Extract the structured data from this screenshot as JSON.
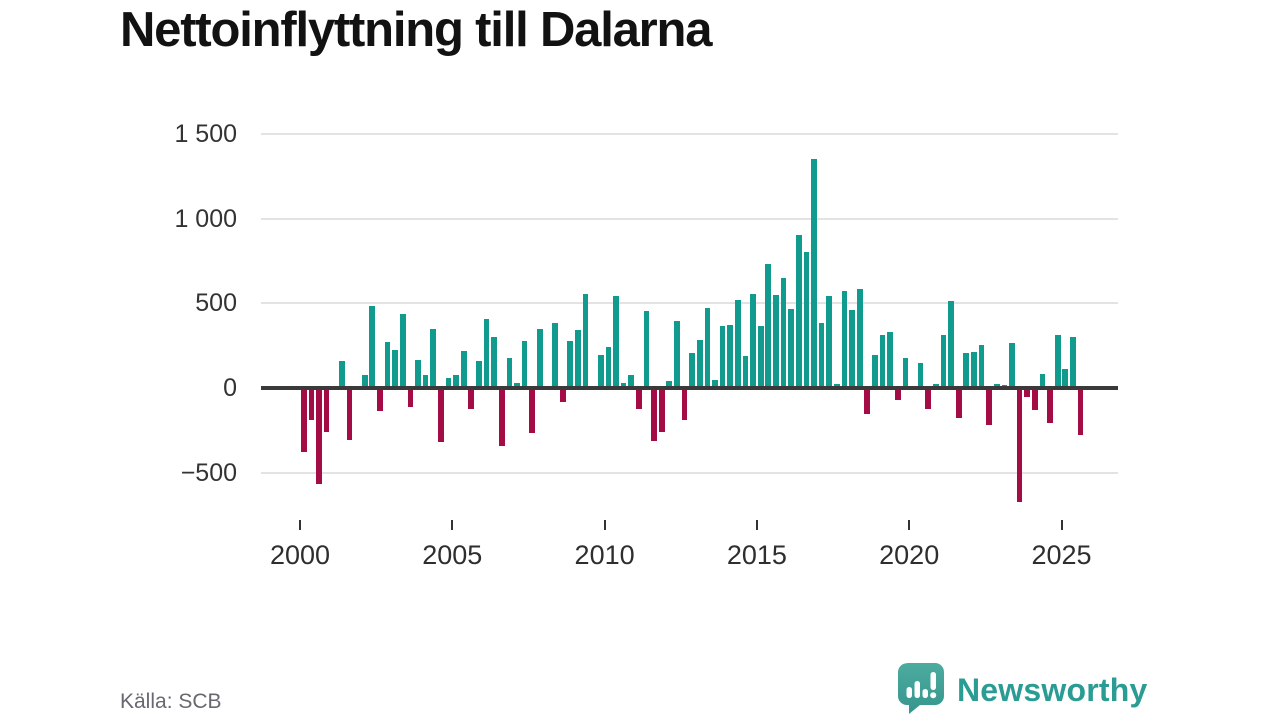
{
  "header": {
    "title": "Nettoinflyttning till Dalarna"
  },
  "footer": {
    "source": "Källa: SCB",
    "brand": "Newsworthy"
  },
  "colors": {
    "positive": "#119b8e",
    "negative": "#a30c45",
    "gridline": "#e3e3e3",
    "zero_line": "#3a3a3a",
    "axis_text": "#333333",
    "brand_teal": "#2a9c94"
  },
  "chart_data": {
    "type": "bar",
    "title": "Nettoinflyttning till Dalarna",
    "xlabel": "",
    "ylabel": "",
    "grid": true,
    "legend": false,
    "ylim": [
      -700,
      1550
    ],
    "y_ticks": [
      -500,
      0,
      500,
      1000,
      1500
    ],
    "y_tick_labels": [
      "−500",
      "0",
      "500",
      "1 000",
      "1 500"
    ],
    "x_ticks": [
      2000,
      2005,
      2010,
      2015,
      2020,
      2025
    ],
    "x_tick_labels": [
      "2000",
      "2005",
      "2010",
      "2015",
      "2020",
      "2025"
    ],
    "quarters": [
      "2000 Q1",
      "2000 Q2",
      "2000 Q3",
      "2000 Q4",
      "2001 Q1",
      "2001 Q2",
      "2001 Q3",
      "2001 Q4",
      "2002 Q1",
      "2002 Q2",
      "2002 Q3",
      "2002 Q4",
      "2003 Q1",
      "2003 Q2",
      "2003 Q3",
      "2003 Q4",
      "2004 Q1",
      "2004 Q2",
      "2004 Q3",
      "2004 Q4",
      "2005 Q1",
      "2005 Q2",
      "2005 Q3",
      "2005 Q4",
      "2006 Q1",
      "2006 Q2",
      "2006 Q3",
      "2006 Q4",
      "2007 Q1",
      "2007 Q2",
      "2007 Q3",
      "2007 Q4",
      "2008 Q1",
      "2008 Q2",
      "2008 Q3",
      "2008 Q4",
      "2009 Q1",
      "2009 Q2",
      "2009 Q3",
      "2009 Q4",
      "2010 Q1",
      "2010 Q2",
      "2010 Q3",
      "2010 Q4",
      "2011 Q1",
      "2011 Q2",
      "2011 Q3",
      "2011 Q4",
      "2012 Q1",
      "2012 Q2",
      "2012 Q3",
      "2012 Q4",
      "2013 Q1",
      "2013 Q2",
      "2013 Q3",
      "2013 Q4",
      "2014 Q1",
      "2014 Q2",
      "2014 Q3",
      "2014 Q4",
      "2015 Q1",
      "2015 Q2",
      "2015 Q3",
      "2015 Q4",
      "2016 Q1",
      "2016 Q2",
      "2016 Q3",
      "2016 Q4",
      "2017 Q1",
      "2017 Q2",
      "2017 Q3",
      "2017 Q4",
      "2018 Q1",
      "2018 Q2",
      "2018 Q3",
      "2018 Q4",
      "2019 Q1",
      "2019 Q2",
      "2019 Q3",
      "2019 Q4",
      "2020 Q1",
      "2020 Q2",
      "2020 Q3",
      "2020 Q4",
      "2021 Q1",
      "2021 Q2",
      "2021 Q3",
      "2021 Q4",
      "2022 Q1",
      "2022 Q2",
      "2022 Q3",
      "2022 Q4",
      "2023 Q1",
      "2023 Q2",
      "2023 Q3",
      "2023 Q4",
      "2024 Q1",
      "2024 Q2",
      "2024 Q3",
      "2024 Q4",
      "2025 Q1",
      "2025 Q2",
      "2025 Q3"
    ],
    "values": [
      -365,
      -175,
      -553,
      -250,
      0,
      158,
      -296,
      0,
      75,
      485,
      -122,
      273,
      227,
      440,
      -103,
      165,
      75,
      346,
      -306,
      60,
      75,
      219,
      -113,
      160,
      405,
      302,
      -330,
      178,
      30,
      277,
      -251,
      346,
      0,
      385,
      -73,
      277,
      340,
      553,
      0,
      194,
      245,
      541,
      30,
      78,
      -110,
      455,
      -303,
      -246,
      40,
      395,
      -177,
      207,
      285,
      472,
      50,
      364,
      370,
      520,
      190,
      555,
      368,
      730,
      550,
      650,
      466,
      903,
      806,
      1355,
      385,
      545,
      26,
      571,
      460,
      583,
      -142,
      194,
      316,
      332,
      -59,
      178,
      0,
      148,
      -113,
      24,
      312,
      514,
      -166,
      204,
      213,
      253,
      -208,
      26,
      16,
      267,
      -660,
      -40,
      -117,
      81,
      -196,
      316,
      111,
      302,
      -267
    ]
  }
}
